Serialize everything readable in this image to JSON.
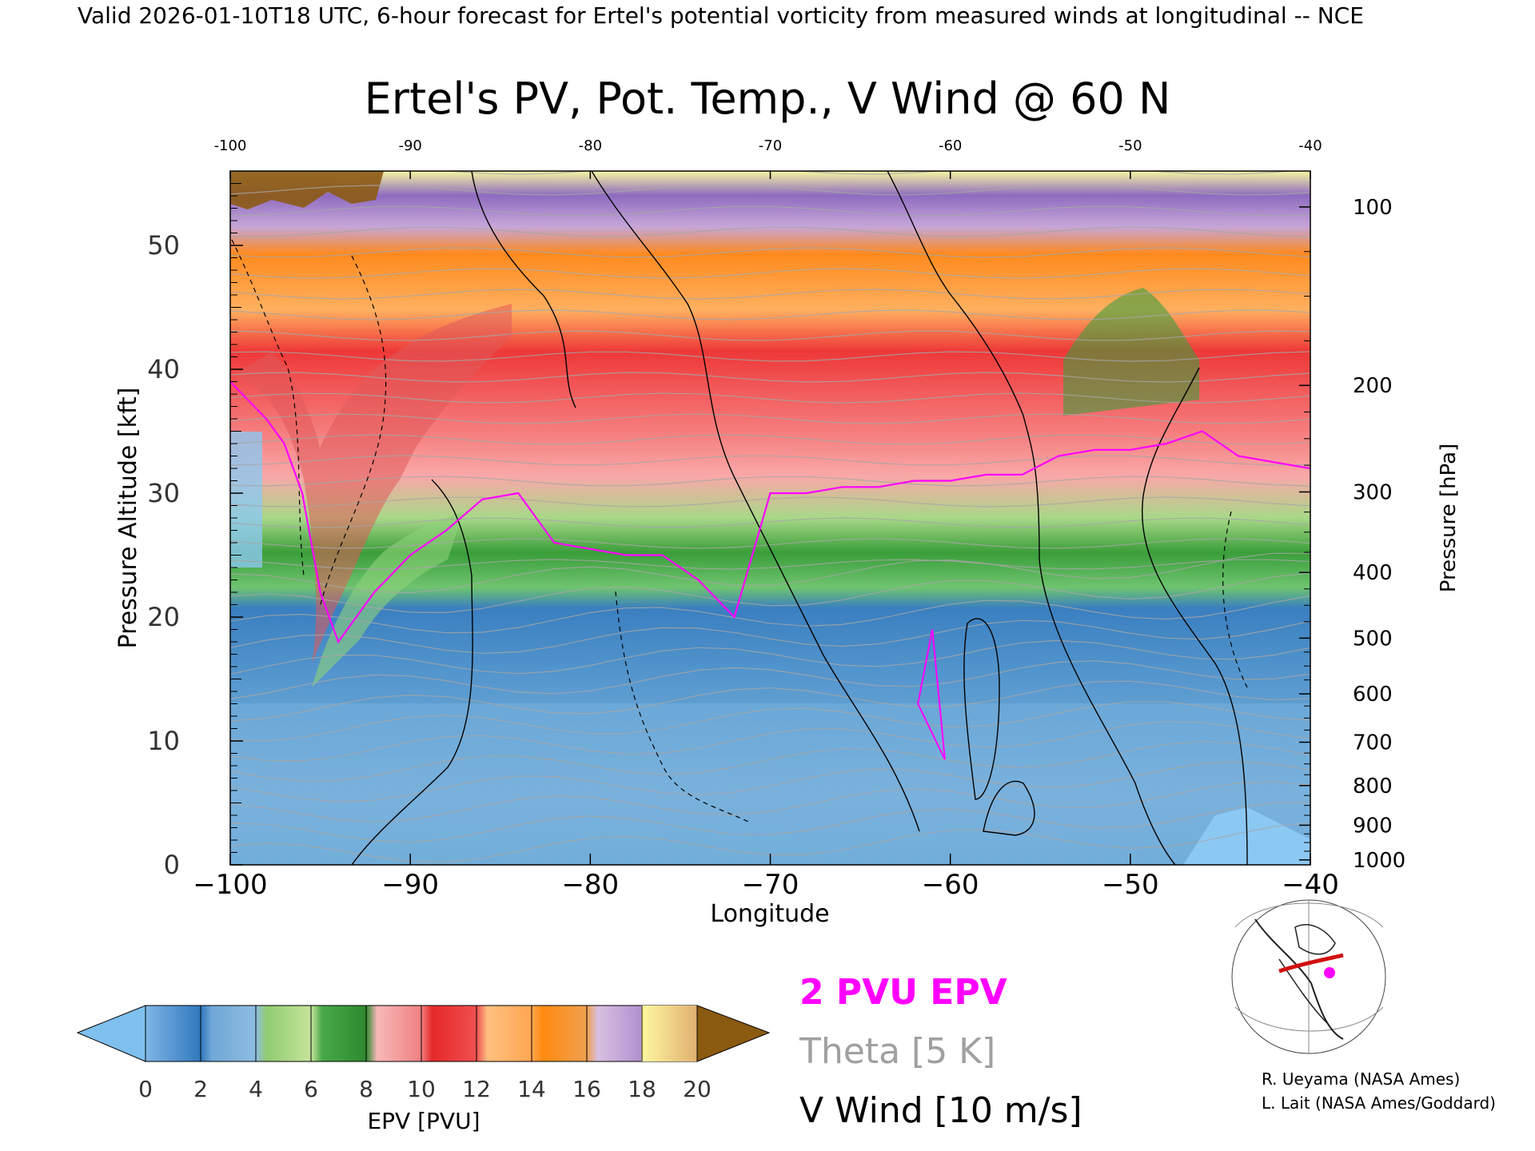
{
  "header": "Valid 2026-01-10T18 UTC, 6-hour forecast for Ertel's potential vorticity from measured winds at longitudinal -- NCE",
  "title": "Ertel's PV, Pot. Temp., V Wind @ 60 N",
  "xlabel": "Longitude",
  "ylabel_left": "Pressure Altitude [kft]",
  "ylabel_right": "Pressure [hPa]",
  "xticks_bottom": [
    "−100",
    "−90",
    "−80",
    "−70",
    "−60",
    "−50",
    "−40"
  ],
  "xticks_top": [
    "-100",
    "-90",
    "-80",
    "-70",
    "-60",
    "-50",
    "-40"
  ],
  "yticks_left": [
    "0",
    "10",
    "20",
    "30",
    "40",
    "50"
  ],
  "yticks_right": [
    "100",
    "200",
    "300",
    "400",
    "500",
    "600",
    "700",
    "800",
    "900",
    "1000"
  ],
  "legend": {
    "pv2": "2 PVU EPV",
    "theta": "Theta [5 K]",
    "vwind": "V Wind [10 m/s]",
    "pv2_color": "#ff00ff",
    "theta_color": "#a0a0a0",
    "vwind_color": "#000000"
  },
  "colorbar": {
    "label": "EPV [PVU]",
    "ticks": [
      "0",
      "2",
      "4",
      "6",
      "8",
      "10",
      "12",
      "14",
      "16",
      "18",
      "20"
    ]
  },
  "credits": [
    "R. Ueyama (NASA Ames)",
    "L. Lait (NASA Ames/Goddard)"
  ],
  "chart_data": {
    "type": "heatmap",
    "x_range": [
      -100,
      -40
    ],
    "y_range_kft": [
      0,
      56
    ],
    "pressure_levels_hPa": [
      100,
      200,
      300,
      400,
      500,
      600,
      700,
      800,
      900,
      1000
    ],
    "pressure_altitude_kft": [
      53.1,
      38.7,
      30.1,
      23.6,
      18.3,
      13.8,
      9.9,
      6.4,
      3.2,
      0.4
    ],
    "tropopause_2pvu_kft": {
      "x": [
        -100,
        -98,
        -97,
        -96,
        -95,
        -94,
        -92,
        -90,
        -88,
        -86,
        -84,
        -82,
        -80,
        -78,
        -76,
        -74,
        -72,
        -70,
        -68,
        -66,
        -64,
        -62,
        -60,
        -58,
        -56,
        -54,
        -52,
        -50,
        -48,
        -46,
        -44,
        -42,
        -40
      ],
      "y": [
        39,
        36,
        34,
        30,
        22,
        18,
        22,
        25,
        27,
        29.5,
        30,
        26,
        25.5,
        25,
        25,
        23,
        20,
        30,
        30,
        30.5,
        30.5,
        31,
        31,
        31.5,
        31.5,
        33,
        33.5,
        33.5,
        34,
        35,
        33,
        32.5,
        32
      ]
    }
  }
}
